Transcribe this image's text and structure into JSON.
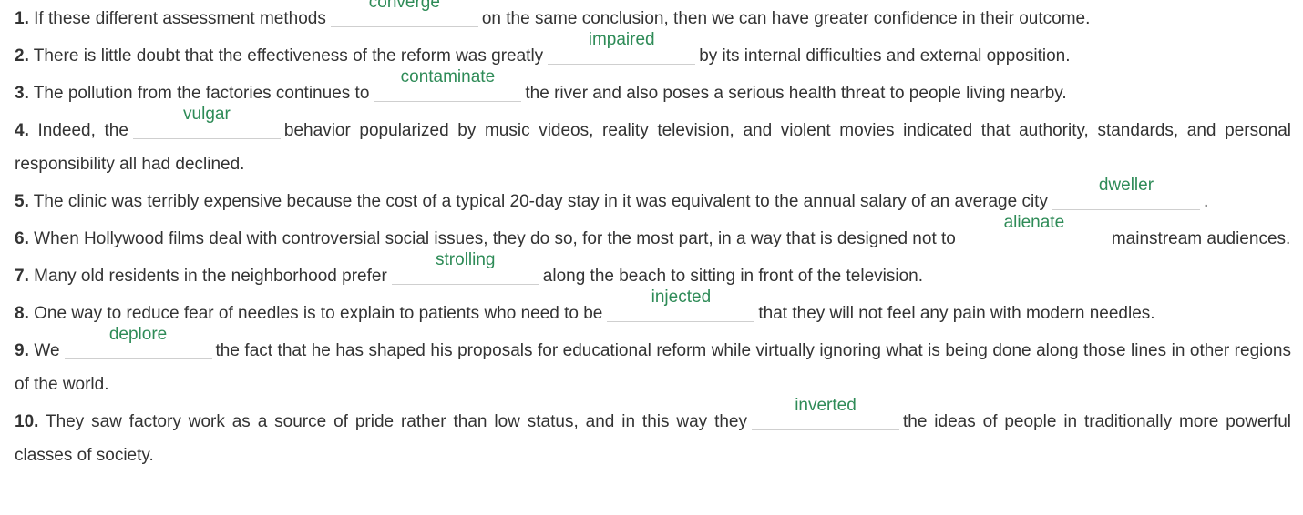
{
  "questions": [
    {
      "number": "1.",
      "before": "If these different assessment methods",
      "answer": "converge",
      "after": "on the same conclusion, then we can have greater confidence in their outcome."
    },
    {
      "number": "2.",
      "before": "There is little doubt that the effectiveness of the reform was greatly",
      "answer": "impaired",
      "after": "by its internal difficulties and external opposition."
    },
    {
      "number": "3.",
      "before": "The pollution from the factories continues to",
      "answer": "contaminate",
      "after": "the river and also poses a serious health threat to people living nearby."
    },
    {
      "number": "4.",
      "before": "Indeed, the",
      "answer": "vulgar",
      "after": "behavior popularized by music videos, reality television, and violent movies indicated that authority, standards, and personal responsibility all had declined."
    },
    {
      "number": "5.",
      "before": "The clinic was terribly expensive because the cost of a typical 20-day stay in it was equivalent to the annual salary of an average city",
      "answer": "dweller",
      "after": "."
    },
    {
      "number": "6.",
      "before": "When Hollywood films deal with controversial social issues, they do so, for the most part, in a way that is designed not to",
      "answer": "alienate",
      "after": "mainstream audiences."
    },
    {
      "number": "7.",
      "before": "Many old residents in the neighborhood prefer",
      "answer": "strolling",
      "after": "along the beach to sitting in front of the television."
    },
    {
      "number": "8.",
      "before": "One way to reduce fear of needles is to explain to patients who need to be",
      "answer": "injected",
      "after": "that they will not feel any pain with modern needles."
    },
    {
      "number": "9.",
      "before": "We",
      "answer": "deplore",
      "after": "the fact that he has shaped his proposals for educational reform while virtually ignoring what is being done along those lines in other regions of the world."
    },
    {
      "number": "10.",
      "before": "They saw factory work as a source of pride rather than low status, and in this way they",
      "answer": "inverted",
      "after": "the ideas of people in traditionally more powerful classes of society."
    }
  ],
  "colors": {
    "answer_text": "#2e8b57",
    "body_text": "#333333",
    "blank_line": "#cfcfcf"
  }
}
